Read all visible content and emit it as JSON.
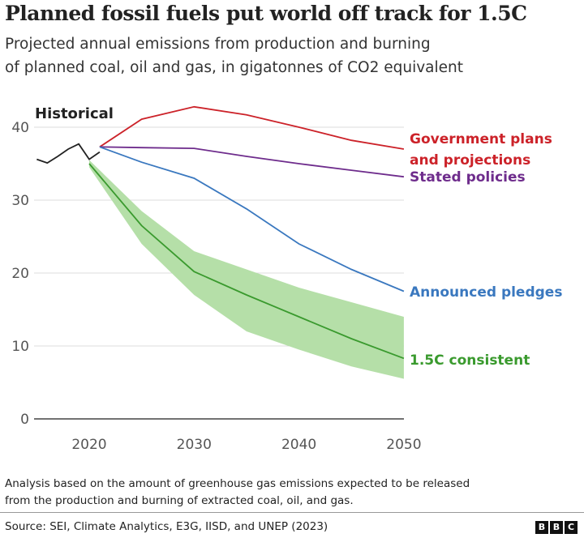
{
  "title": "Planned fossil fuels put world off track for 1.5C",
  "subtitle_lines": [
    "Projected annual emissions from production and burning",
    "of planned coal, oil and gas, in gigatonnes of CO2 equivalent"
  ],
  "note_lines": [
    "Analysis based on the amount of greenhouse gas emissions expected to be released",
    "from the production and burning of extracted coal, oil, and gas."
  ],
  "source": "Source: SEI, Climate Analytics, E3G, IISD, and UNEP (2023)",
  "logo": [
    "B",
    "B",
    "C"
  ],
  "chart_data": {
    "type": "line",
    "title": "Planned fossil fuels put world off track for 1.5C",
    "ylabel": "Gigatonnes of CO2 equivalent",
    "xlim": [
      2015,
      2050
    ],
    "ylim": [
      0,
      45
    ],
    "xticks": [
      2020,
      2030,
      2040,
      2050
    ],
    "yticks": [
      0,
      10,
      20,
      30,
      40
    ],
    "grid": true,
    "series": [
      {
        "name": "Historical",
        "color": "#222222",
        "x": [
          2015,
          2016,
          2017,
          2018,
          2019,
          2020,
          2021
        ],
        "values": [
          35.6,
          35.1,
          36,
          37,
          37.7,
          35.6,
          36.6
        ]
      },
      {
        "name": "Government plans and projections",
        "label_lines": [
          "Government plans",
          "and projections"
        ],
        "color": "#cc2229",
        "x": [
          2021,
          2025,
          2030,
          2035,
          2040,
          2045,
          2050
        ],
        "values": [
          37.3,
          41.1,
          42.8,
          41.7,
          40.0,
          38.2,
          37.0
        ]
      },
      {
        "name": "Stated policies",
        "label_lines": [
          "Stated policies"
        ],
        "color": "#6e2c8c",
        "x": [
          2021,
          2025,
          2030,
          2035,
          2040,
          2045,
          2050
        ],
        "values": [
          37.3,
          37.2,
          37.1,
          36.0,
          35.0,
          34.1,
          33.2
        ]
      },
      {
        "name": "Announced pledges",
        "label_lines": [
          "Announced pledges"
        ],
        "color": "#3a78bf",
        "x": [
          2021,
          2025,
          2030,
          2035,
          2040,
          2045,
          2050
        ],
        "values": [
          37.3,
          35.2,
          33.0,
          28.8,
          24.0,
          20.5,
          17.5
        ]
      },
      {
        "name": "1.5C consistent",
        "label_lines": [
          "1.5C consistent"
        ],
        "color": "#3a9a2e",
        "x": [
          2020,
          2025,
          2030,
          2035,
          2040,
          2045,
          2050
        ],
        "values": [
          35.0,
          26.5,
          20.2,
          17.0,
          14.0,
          11.0,
          8.3
        ],
        "band_lower": [
          34.5,
          24.0,
          17.0,
          12.0,
          9.5,
          7.2,
          5.5
        ],
        "band_upper": [
          35.5,
          28.5,
          23.0,
          20.5,
          18.0,
          16.0,
          14.0
        ],
        "band_color": "#b5dfa8"
      }
    ]
  }
}
